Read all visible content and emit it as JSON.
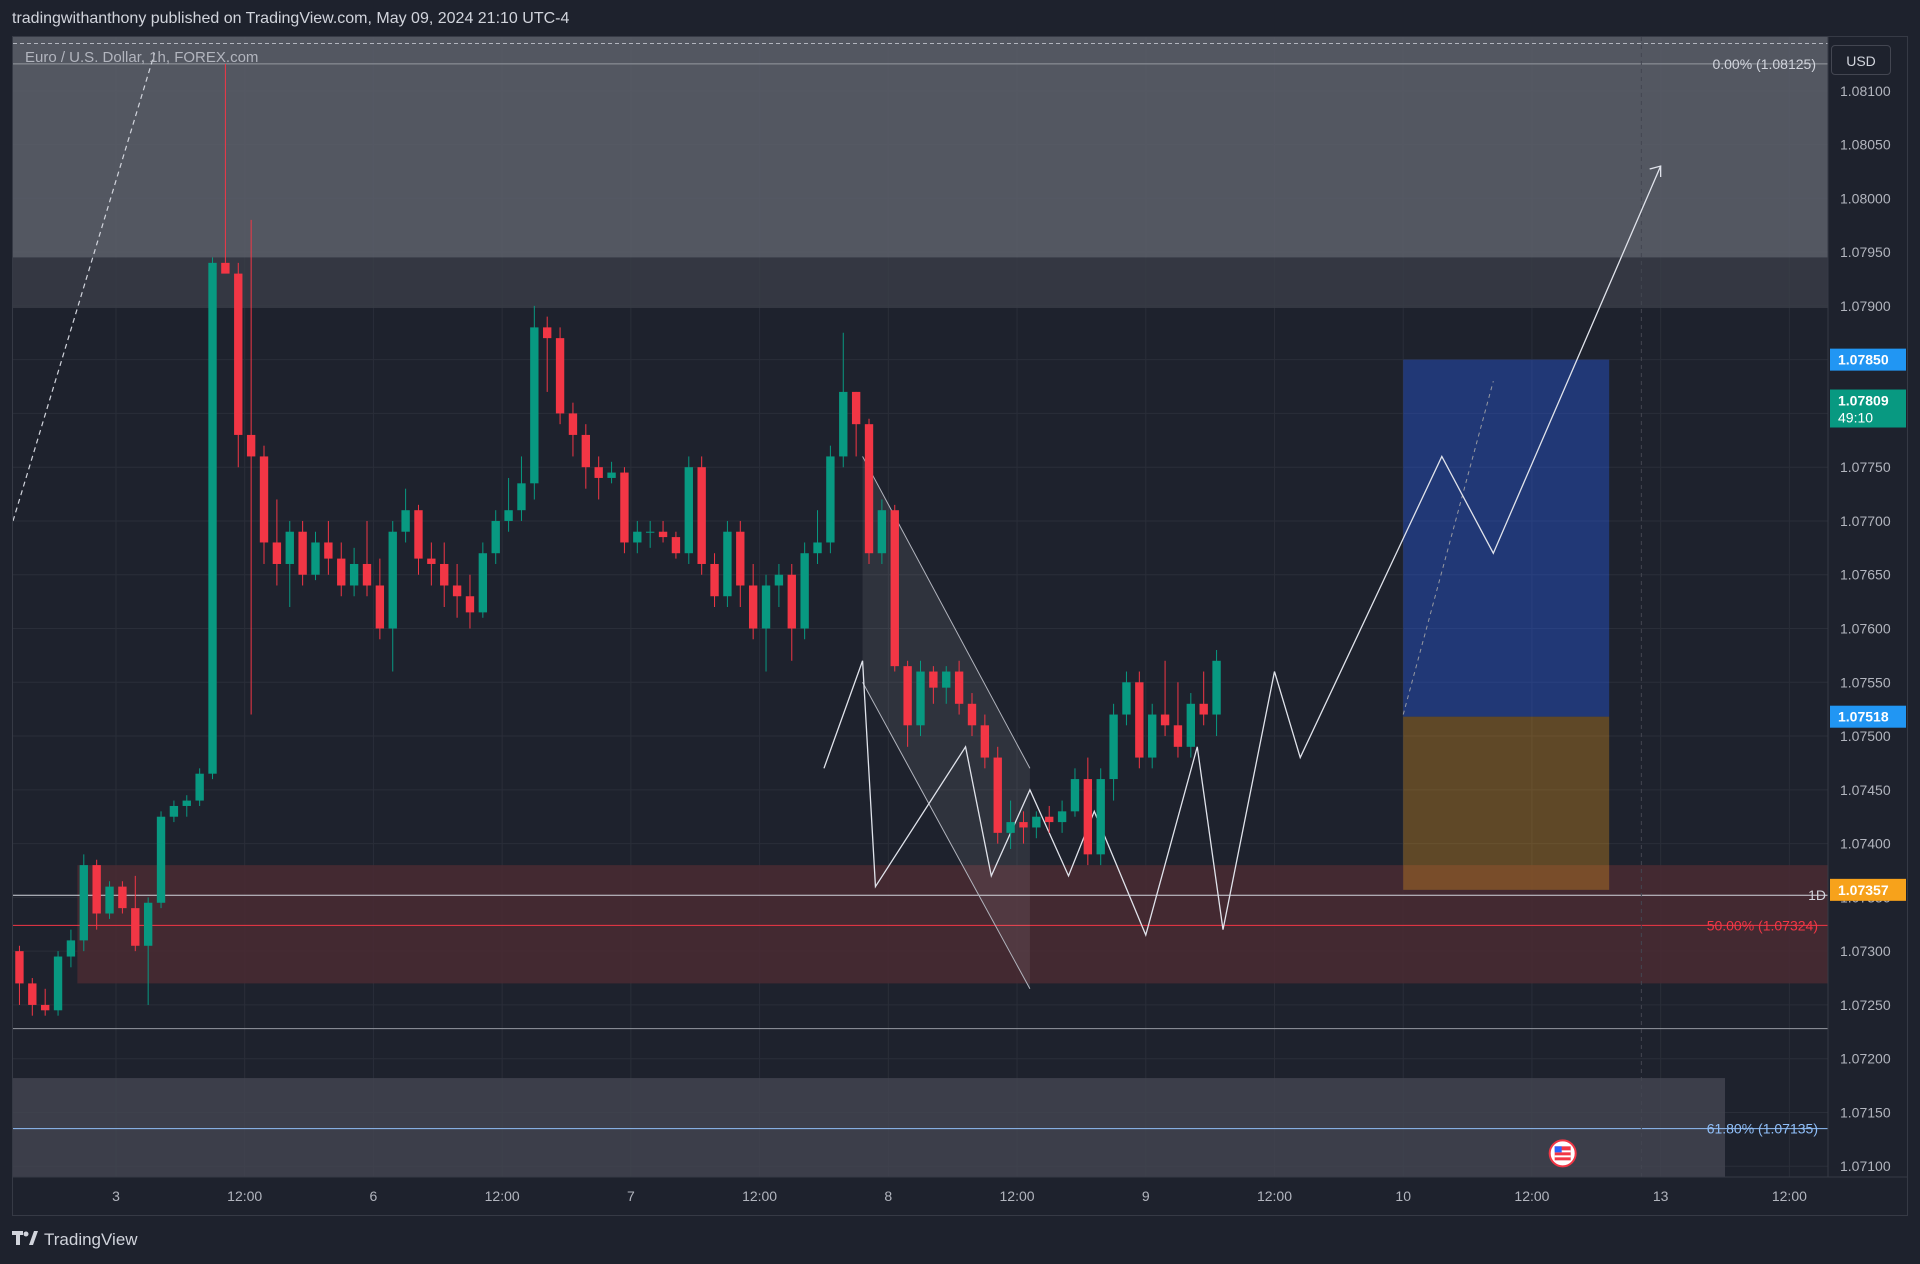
{
  "header": {
    "publisher": "tradingwithanthony published on TradingView.com, May 09, 2024 21:10 UTC-4"
  },
  "chart_header": {
    "title": "Euro / U.S. Dollar, 1h, FOREX.com",
    "currency": "USD"
  },
  "footer": {
    "brand": "TradingView",
    "logo_icon": "tradingview-logo-icon"
  },
  "colors": {
    "up": "#089981",
    "down": "#f23645",
    "bg": "#1e222d",
    "grid": "#2a2e39",
    "label_blue": "#2196f3",
    "label_green": "#089981",
    "label_orange": "#f7a21b",
    "supply_zone": "#5d606b",
    "demand_zone": "#4a2a33",
    "fib_red": "#f23645",
    "fib_blue": "#90bff9"
  },
  "chart_data": {
    "type": "candlestick",
    "symbol": "EUR/USD",
    "timeframe": "1h",
    "ylim": [
      1.0709,
      1.0815
    ],
    "y_ticks": [
      "1.08100",
      "1.08050",
      "1.08000",
      "1.07950",
      "1.07900",
      "1.07850",
      "1.07800",
      "1.07750",
      "1.07700",
      "1.07650",
      "1.07600",
      "1.07550",
      "1.07500",
      "1.07450",
      "1.07400",
      "1.07350",
      "1.07300",
      "1.07250",
      "1.07200",
      "1.07150",
      "1.07100"
    ],
    "x_ticks": [
      {
        "label": "3",
        "i": 8
      },
      {
        "label": "12:00",
        "i": 18
      },
      {
        "label": "6",
        "i": 28
      },
      {
        "label": "12:00",
        "i": 38
      },
      {
        "label": "7",
        "i": 48
      },
      {
        "label": "12:00",
        "i": 58
      },
      {
        "label": "8",
        "i": 68
      },
      {
        "label": "12:00",
        "i": 78
      },
      {
        "label": "9",
        "i": 88
      },
      {
        "label": "12:00",
        "i": 98
      },
      {
        "label": "10",
        "i": 108
      },
      {
        "label": "12:00",
        "i": 118
      },
      {
        "label": "13",
        "i": 128
      },
      {
        "label": "12:00",
        "i": 138
      }
    ],
    "x_range": [
      0,
      141
    ],
    "candles": [
      [
        1.073,
        1.07305,
        1.0725,
        1.0727
      ],
      [
        1.0727,
        1.07275,
        1.0724,
        1.0725
      ],
      [
        1.0725,
        1.07265,
        1.0724,
        1.07245
      ],
      [
        1.07245,
        1.073,
        1.0724,
        1.07295
      ],
      [
        1.07295,
        1.0732,
        1.07285,
        1.0731
      ],
      [
        1.0731,
        1.0739,
        1.073,
        1.0738
      ],
      [
        1.0738,
        1.07385,
        1.0732,
        1.07335
      ],
      [
        1.07335,
        1.07365,
        1.0733,
        1.0736
      ],
      [
        1.0736,
        1.07365,
        1.07335,
        1.0734
      ],
      [
        1.0734,
        1.0737,
        1.073,
        1.07305
      ],
      [
        1.07305,
        1.0735,
        1.0725,
        1.07345
      ],
      [
        1.07345,
        1.0743,
        1.0734,
        1.07425
      ],
      [
        1.07425,
        1.0744,
        1.0742,
        1.07435
      ],
      [
        1.07435,
        1.07445,
        1.07425,
        1.0744
      ],
      [
        1.0744,
        1.0747,
        1.07435,
        1.07465
      ],
      [
        1.07465,
        1.07945,
        1.0746,
        1.0794
      ],
      [
        1.0794,
        1.08125,
        1.0794,
        1.0793
      ],
      [
        1.0793,
        1.0794,
        1.0775,
        1.0778
      ],
      [
        1.0778,
        1.0798,
        1.0752,
        1.0776
      ],
      [
        1.0776,
        1.0777,
        1.0766,
        1.0768
      ],
      [
        1.0768,
        1.0772,
        1.0764,
        1.0766
      ],
      [
        1.0766,
        1.077,
        1.0762,
        1.0769
      ],
      [
        1.0769,
        1.077,
        1.0764,
        1.0765
      ],
      [
        1.0765,
        1.0769,
        1.07645,
        1.0768
      ],
      [
        1.0768,
        1.077,
        1.0765,
        1.07665
      ],
      [
        1.07665,
        1.0768,
        1.0763,
        1.0764
      ],
      [
        1.0764,
        1.07675,
        1.0763,
        1.0766
      ],
      [
        1.0766,
        1.077,
        1.0763,
        1.0764
      ],
      [
        1.0764,
        1.07665,
        1.0759,
        1.076
      ],
      [
        1.076,
        1.077,
        1.0756,
        1.0769
      ],
      [
        1.0769,
        1.0773,
        1.0768,
        1.0771
      ],
      [
        1.0771,
        1.07715,
        1.0765,
        1.07665
      ],
      [
        1.07665,
        1.0768,
        1.0764,
        1.0766
      ],
      [
        1.0766,
        1.0768,
        1.0762,
        1.0764
      ],
      [
        1.0764,
        1.0766,
        1.0761,
        1.0763
      ],
      [
        1.0763,
        1.0765,
        1.076,
        1.07615
      ],
      [
        1.07615,
        1.0768,
        1.0761,
        1.0767
      ],
      [
        1.0767,
        1.0771,
        1.0766,
        1.077
      ],
      [
        1.077,
        1.0774,
        1.0769,
        1.0771
      ],
      [
        1.0771,
        1.0776,
        1.077,
        1.07735
      ],
      [
        1.07735,
        1.079,
        1.0772,
        1.0788
      ],
      [
        1.0788,
        1.0789,
        1.0782,
        1.0787
      ],
      [
        1.0787,
        1.0788,
        1.0779,
        1.078
      ],
      [
        1.078,
        1.0781,
        1.0776,
        1.0778
      ],
      [
        1.0778,
        1.0779,
        1.0773,
        1.0775
      ],
      [
        1.0775,
        1.0776,
        1.0772,
        1.0774
      ],
      [
        1.0774,
        1.07755,
        1.07735,
        1.07745
      ],
      [
        1.07745,
        1.0775,
        1.0767,
        1.0768
      ],
      [
        1.0768,
        1.077,
        1.0767,
        1.0769
      ],
      [
        1.0769,
        1.077,
        1.07675,
        1.0769
      ],
      [
        1.0769,
        1.077,
        1.0768,
        1.07685
      ],
      [
        1.07685,
        1.0769,
        1.07665,
        1.0767
      ],
      [
        1.0767,
        1.0776,
        1.0766,
        1.0775
      ],
      [
        1.0775,
        1.0776,
        1.0765,
        1.0766
      ],
      [
        1.0766,
        1.0767,
        1.0762,
        1.0763
      ],
      [
        1.0763,
        1.077,
        1.0762,
        1.0769
      ],
      [
        1.0769,
        1.077,
        1.0762,
        1.0764
      ],
      [
        1.0764,
        1.0766,
        1.0759,
        1.076
      ],
      [
        1.076,
        1.0765,
        1.0756,
        1.0764
      ],
      [
        1.0764,
        1.0766,
        1.0762,
        1.0765
      ],
      [
        1.0765,
        1.0766,
        1.0757,
        1.076
      ],
      [
        1.076,
        1.0768,
        1.0759,
        1.0767
      ],
      [
        1.0767,
        1.0771,
        1.0766,
        1.0768
      ],
      [
        1.0768,
        1.0777,
        1.0767,
        1.0776
      ],
      [
        1.0776,
        1.07875,
        1.0775,
        1.0782
      ],
      [
        1.0782,
        1.0782,
        1.0776,
        1.0779
      ],
      [
        1.0779,
        1.07795,
        1.0766,
        1.0767
      ],
      [
        1.0767,
        1.0772,
        1.0766,
        1.0771
      ],
      [
        1.0771,
        1.07715,
        1.0756,
        1.07565
      ],
      [
        1.07565,
        1.0757,
        1.0749,
        1.0751
      ],
      [
        1.0751,
        1.0757,
        1.075,
        1.0756
      ],
      [
        1.0756,
        1.07565,
        1.0753,
        1.07545
      ],
      [
        1.07545,
        1.07565,
        1.0753,
        1.0756
      ],
      [
        1.0756,
        1.0757,
        1.0752,
        1.0753
      ],
      [
        1.0753,
        1.0754,
        1.075,
        1.0751
      ],
      [
        1.0751,
        1.0752,
        1.0747,
        1.0748
      ],
      [
        1.0748,
        1.0749,
        1.074,
        1.0741
      ],
      [
        1.0741,
        1.0744,
        1.07395,
        1.0742
      ],
      [
        1.0742,
        1.0743,
        1.074,
        1.07415
      ],
      [
        1.07415,
        1.0743,
        1.07405,
        1.07425
      ],
      [
        1.07425,
        1.07435,
        1.0741,
        1.0742
      ],
      [
        1.0742,
        1.0744,
        1.0741,
        1.0743
      ],
      [
        1.0743,
        1.0747,
        1.07425,
        1.0746
      ],
      [
        1.0746,
        1.0748,
        1.0738,
        1.0739
      ],
      [
        1.0739,
        1.0747,
        1.0738,
        1.0746
      ],
      [
        1.0746,
        1.0753,
        1.0744,
        1.0752
      ],
      [
        1.0752,
        1.0756,
        1.0751,
        1.0755
      ],
      [
        1.0755,
        1.0756,
        1.0747,
        1.0748
      ],
      [
        1.0748,
        1.0753,
        1.0747,
        1.0752
      ],
      [
        1.0752,
        1.0757,
        1.075,
        1.0751
      ],
      [
        1.0751,
        1.0755,
        1.0748,
        1.0749
      ],
      [
        1.0749,
        1.0754,
        1.0748,
        1.0753
      ],
      [
        1.0753,
        1.0756,
        1.0751,
        1.0752
      ],
      [
        1.0752,
        1.0758,
        1.075,
        1.0757
      ]
    ]
  }
}
